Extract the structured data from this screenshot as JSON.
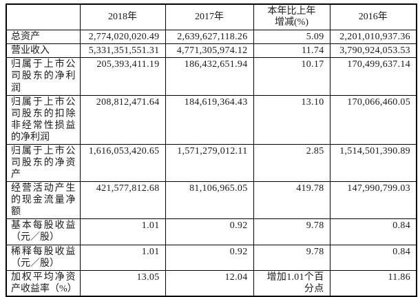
{
  "table": {
    "columns": [
      "",
      "2018年",
      "2017年",
      "本年比上年\n增减(%)",
      "2016年"
    ],
    "rows": [
      {
        "label": "总资产",
        "y2018": "2,774,020,020.49",
        "y2017": "2,639,627,118.26",
        "change": "5.09",
        "y2016": "2,201,010,937.36"
      },
      {
        "label": "营业收入",
        "y2018": "5,331,351,551.31",
        "y2017": "4,771,305,974.12",
        "change": "11.74",
        "y2016": "3,790,924,053.53"
      },
      {
        "label": "归属于上市公司股东的净利润",
        "y2018": "205,393,411.19",
        "y2017": "186,432,651.94",
        "change": "10.17",
        "y2016": "170,499,637.14"
      },
      {
        "label": "归属于上市公司股东的扣除非经常性损益的净利润",
        "y2018": "208,812,471.64",
        "y2017": "184,619,364.43",
        "change": "13.10",
        "y2016": "170,066,460.05"
      },
      {
        "label": "归属于上市公司股东的净资产",
        "y2018": "1,616,053,420.65",
        "y2017": "1,571,279,012.11",
        "change": "2.85",
        "y2016": "1,514,501,390.89"
      },
      {
        "label": "经营活动产生的现金流量净额",
        "y2018": "421,577,812.68",
        "y2017": "81,106,965.05",
        "change": "419.78",
        "y2016": "147,990,799.03"
      },
      {
        "label": "基本每股收益（元／股）",
        "y2018": "1.01",
        "y2017": "0.92",
        "change": "9.78",
        "y2016": "0.84"
      },
      {
        "label": "稀释每股收益（元／股）",
        "y2018": "1.01",
        "y2017": "0.92",
        "change": "9.78",
        "y2016": "0.84"
      },
      {
        "label": "加权平均净资产收益率（%）",
        "y2018": "13.05",
        "y2017": "12.04",
        "change": "增加1.01个百分点",
        "y2016": "11.86"
      }
    ]
  }
}
